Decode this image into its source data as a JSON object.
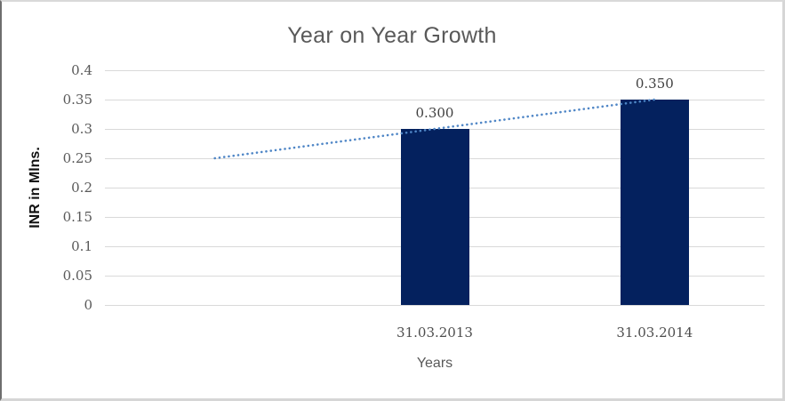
{
  "window": {
    "background": "#ffffff",
    "border_color": "#d9d9d9"
  },
  "chart_data": {
    "type": "bar",
    "title": "Year on Year Growth",
    "xlabel": "Years",
    "ylabel": "INR in Mlns.",
    "categories": [
      "31.03.2013",
      "31.03.2014"
    ],
    "values": [
      0.3,
      0.35
    ],
    "data_labels": [
      "0.300",
      "0.350"
    ],
    "ylim": [
      0,
      0.4
    ],
    "ytick_step": 0.05,
    "ytick_labels": [
      "0",
      "0.05",
      "0.1",
      "0.15",
      "0.2",
      "0.25",
      "0.3",
      "0.35",
      "0.4"
    ],
    "grid": true,
    "legend": "none",
    "bar_color": "#04215e",
    "gridline_color": "#d9d9d9",
    "title_color": "#595959",
    "tick_color": "#595959",
    "trendline": {
      "type": "linear",
      "style": "dotted",
      "color": "#4f86c6",
      "points": [
        {
          "slot": 0,
          "value": 0.25
        },
        {
          "slot": 2,
          "value": 0.35
        }
      ]
    }
  }
}
